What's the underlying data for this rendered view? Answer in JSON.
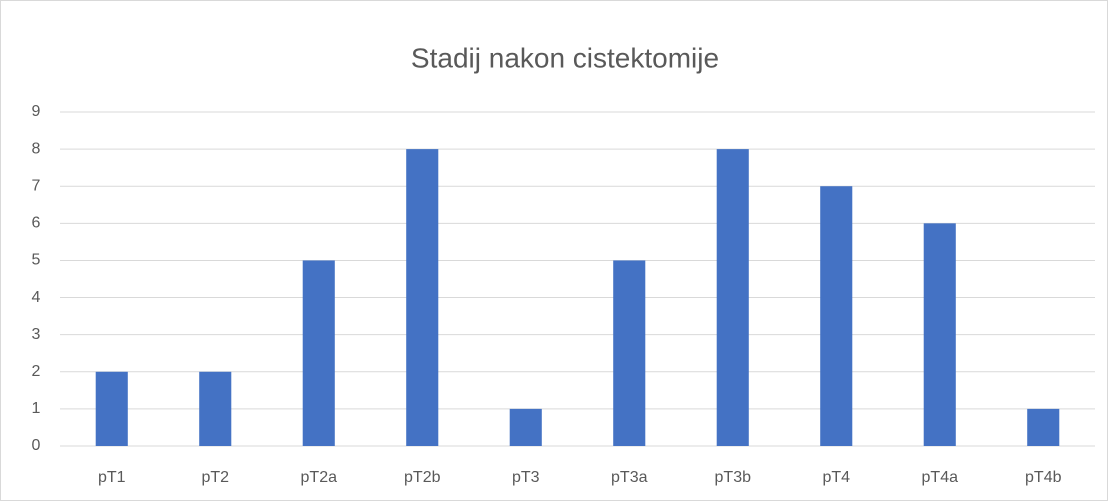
{
  "chart_data": {
    "type": "bar",
    "title": "Stadij nakon cistektomije",
    "categories": [
      "pT1",
      "pT2",
      "pT2a",
      "pT2b",
      "pT3",
      "pT3a",
      "pT3b",
      "pT4",
      "pT4a",
      "pT4b"
    ],
    "values": [
      2,
      2,
      5,
      8,
      1,
      5,
      8,
      7,
      6,
      1
    ],
    "color": "#4472c4",
    "ylim": [
      0,
      9
    ],
    "yticks": [
      0,
      1,
      2,
      3,
      4,
      5,
      6,
      7,
      8,
      9
    ],
    "grid": true
  }
}
